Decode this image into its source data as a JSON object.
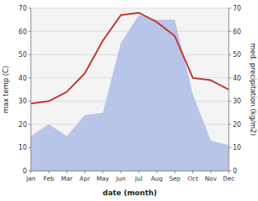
{
  "chart_data": {
    "type": "line",
    "categories": [
      "Jan",
      "Feb",
      "Mar",
      "Apr",
      "May",
      "Jun",
      "Jul",
      "Aug",
      "Sep",
      "Oct",
      "Nov",
      "Dec"
    ],
    "xlabel": "date (month)",
    "ylabel": "max temp (C)",
    "y2label": "med. precipitation (kg/m2)",
    "ylim": [
      0,
      70
    ],
    "yticks": [
      0,
      10,
      20,
      30,
      40,
      50,
      60,
      70
    ],
    "y2lim": [
      0,
      70
    ],
    "y2ticks": [
      0,
      10,
      20,
      30,
      40,
      50,
      60,
      70
    ],
    "grid": true,
    "series": [
      {
        "type": "area",
        "axis": "y2",
        "color": "#b8c4e8",
        "values": [
          15,
          20,
          15,
          24,
          25,
          55,
          67,
          65,
          65,
          33,
          13,
          11
        ]
      },
      {
        "type": "line",
        "color": "#c0392b",
        "values": [
          29,
          30,
          34,
          42,
          56,
          67,
          68,
          64,
          58,
          40,
          39,
          35
        ]
      }
    ]
  }
}
